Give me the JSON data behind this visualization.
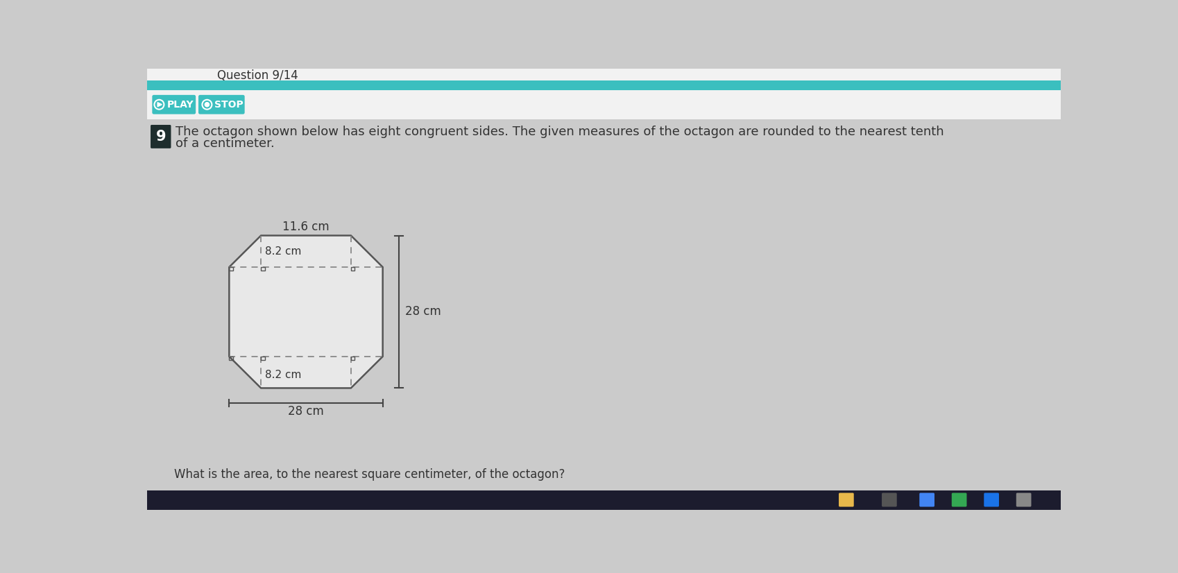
{
  "bg_color": "#cbcbcb",
  "header_top_color": "#ffffff",
  "teal_bar_color": "#3bbfbf",
  "play_btn_bg": "#3bbfbf",
  "stop_btn_bg": "#3bbfbf",
  "white_panel_color": "#f0f0f0",
  "question_num_bg": "#1e2d2d",
  "question_text_line1": "The octagon shown below has eight congruent sides. The given measures of the octagon are rounded to the nearest tenth",
  "question_text_line2": "of a centimeter.",
  "bottom_question": "What is the area, to the nearest square centimeter, of the octagon?",
  "label_116": "11.6 cm",
  "label_82_top": "8.2 cm",
  "label_82_bot": "8.2 cm",
  "label_28_right": "28 cm",
  "label_28_bottom": "28 cm",
  "octagon_fill": "#e8e8e8",
  "octagon_stroke": "#555555",
  "dashed_color": "#888888",
  "taskbar_color": "#1c1c2e",
  "header_text": "Question 9/14",
  "question_num": "9"
}
